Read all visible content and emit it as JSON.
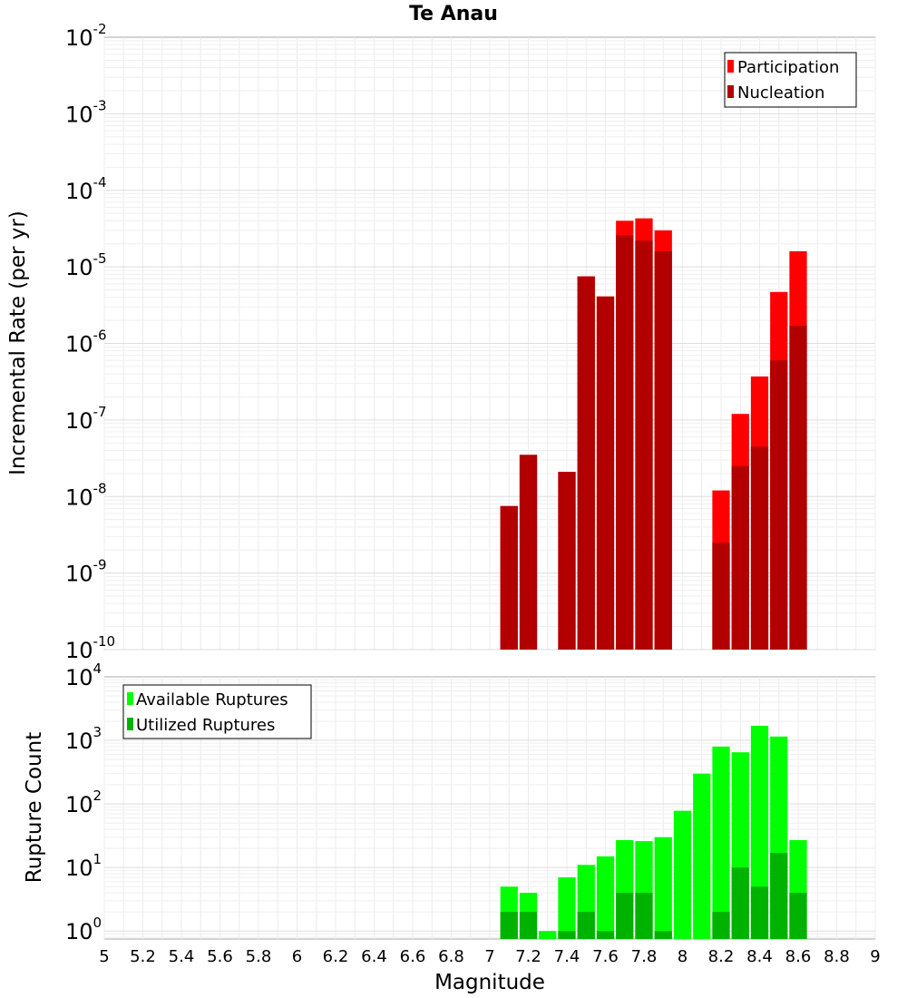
{
  "title": "Te Anau",
  "xlabel": "Magnitude",
  "chart_data": [
    {
      "type": "bar",
      "scale": "log",
      "ylabel": "Incremental Rate (per yr)",
      "ylim": [
        1e-10,
        0.01
      ],
      "xlim": [
        5,
        9
      ],
      "bar_width": 0.1,
      "legend_position": "top-right",
      "grid": true,
      "x": [
        7.1,
        7.2,
        7.4,
        7.5,
        7.6,
        7.7,
        7.8,
        7.9,
        8.2,
        8.3,
        8.4,
        8.5,
        8.6
      ],
      "series": [
        {
          "name": "Participation",
          "color": "#ff0000",
          "values": [
            7.5e-09,
            3.5e-08,
            2.1e-08,
            7.5e-06,
            4.1e-06,
            4e-05,
            4.3e-05,
            3e-05,
            1.2e-08,
            1.2e-07,
            3.7e-07,
            4.7e-06,
            1.6e-05
          ]
        },
        {
          "name": "Nucleation",
          "color": "#b20000",
          "values": [
            7.5e-09,
            3.5e-08,
            2.1e-08,
            7.5e-06,
            4.1e-06,
            2.6e-05,
            2.2e-05,
            1.6e-05,
            2.5e-09,
            2.5e-08,
            4.5e-08,
            6e-07,
            1.7e-06
          ]
        }
      ]
    },
    {
      "type": "bar",
      "scale": "log",
      "ylabel": "Rupture Count",
      "ylim": [
        0.75,
        10000
      ],
      "xlim": [
        5,
        9
      ],
      "bar_width": 0.1,
      "legend_position": "top-left",
      "grid": true,
      "x": [
        7.1,
        7.2,
        7.3,
        7.4,
        7.5,
        7.6,
        7.7,
        7.8,
        7.9,
        8.0,
        8.1,
        8.2,
        8.3,
        8.4,
        8.5,
        8.6
      ],
      "series": [
        {
          "name": "Available Ruptures",
          "color": "#00ff00",
          "values": [
            5,
            4,
            1,
            7,
            11,
            15,
            27,
            26,
            30,
            78,
            300,
            800,
            650,
            1700,
            1150,
            27
          ]
        },
        {
          "name": "Utilized Ruptures",
          "color": "#00b200",
          "values": [
            2,
            2,
            0,
            1,
            2,
            1,
            4,
            4,
            1,
            0,
            0,
            2,
            10,
            5,
            17,
            4
          ]
        }
      ]
    }
  ],
  "x_ticks": [
    "5",
    "5.2",
    "5.4",
    "5.6",
    "5.8",
    "6",
    "6.2",
    "6.4",
    "6.6",
    "6.8",
    "7",
    "7.2",
    "7.4",
    "7.6",
    "7.8",
    "8",
    "8.2",
    "8.4",
    "8.6",
    "8.8",
    "9"
  ],
  "y_ticks_top": [
    {
      "base": "10",
      "exp": "-10",
      "value": 1e-10
    },
    {
      "base": "10",
      "exp": "-9",
      "value": 1e-09
    },
    {
      "base": "10",
      "exp": "-8",
      "value": 1e-08
    },
    {
      "base": "10",
      "exp": "-7",
      "value": 1e-07
    },
    {
      "base": "10",
      "exp": "-6",
      "value": 1e-06
    },
    {
      "base": "10",
      "exp": "-5",
      "value": 1e-05
    },
    {
      "base": "10",
      "exp": "-4",
      "value": 0.0001
    },
    {
      "base": "10",
      "exp": "-3",
      "value": 0.001
    },
    {
      "base": "10",
      "exp": "-2",
      "value": 0.01
    }
  ],
  "y_ticks_bottom": [
    {
      "base": "10",
      "exp": "0",
      "value": 1
    },
    {
      "base": "10",
      "exp": "1",
      "value": 10
    },
    {
      "base": "10",
      "exp": "2",
      "value": 100
    },
    {
      "base": "10",
      "exp": "3",
      "value": 1000
    },
    {
      "base": "10",
      "exp": "4",
      "value": 10000
    }
  ]
}
